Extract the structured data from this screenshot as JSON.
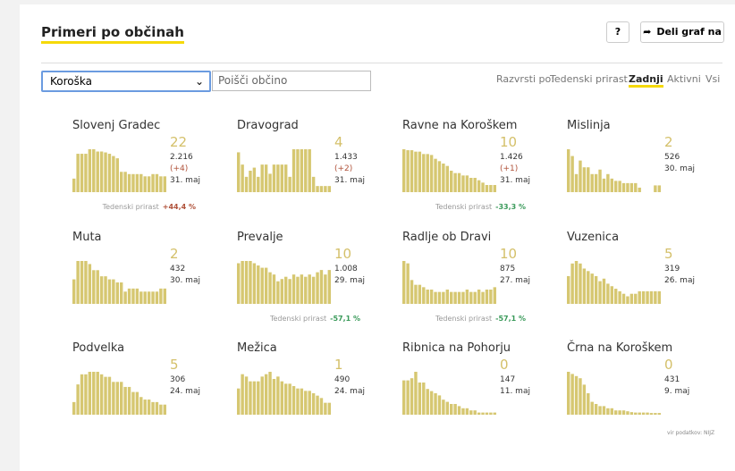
{
  "header": {
    "title": "Primeri po občinah",
    "help": "?",
    "share": "Deli graf na"
  },
  "controls": {
    "select": "Koroška",
    "search": "Poišči občino",
    "sort_label": "Razvrsti po:",
    "sort_options": [
      "Tedenski prirast",
      "Zadnji",
      "Aktivni",
      "Vsi"
    ],
    "active": 1
  },
  "tiles": [
    {
      "name": "Slovenj Gradec",
      "big": 22,
      "total": "2.216",
      "change": "(+4)",
      "date": "31. maj",
      "weekly": {
        "label": "Tedenski prirast",
        "value": "+44,4 %"
      },
      "values": [
        30,
        85,
        85,
        85,
        95,
        95,
        90,
        90,
        88,
        85,
        80,
        75,
        45,
        45,
        40,
        40,
        40,
        40,
        35,
        35,
        40,
        40,
        35,
        35
      ]
    },
    {
      "name": "Dravograd",
      "big": 4,
      "total": "1.433",
      "change": "(+2)",
      "date": "31. maj",
      "values": [
        65,
        45,
        25,
        35,
        40,
        25,
        45,
        45,
        30,
        45,
        45,
        45,
        45,
        25,
        70,
        70,
        70,
        70,
        70,
        25,
        10,
        10,
        10,
        10
      ]
    },
    {
      "name": "Ravne na Koroškem",
      "big": 10,
      "total": "1.426",
      "change": "(+1)",
      "date": "31. maj",
      "weekly": {
        "label": "Tedenski prirast",
        "value": "-33,3 %"
      },
      "values": [
        90,
        88,
        88,
        85,
        85,
        80,
        80,
        78,
        70,
        65,
        60,
        55,
        45,
        40,
        40,
        35,
        35,
        30,
        30,
        25,
        20,
        15,
        15,
        15
      ]
    },
    {
      "name": "Mislinja",
      "big": 2,
      "total": "526",
      "date": "30. maj",
      "values": [
        95,
        80,
        40,
        70,
        55,
        55,
        40,
        40,
        50,
        30,
        40,
        30,
        25,
        25,
        20,
        20,
        20,
        20,
        10,
        0,
        0,
        0,
        15,
        15
      ]
    },
    {
      "name": "Muta",
      "big": 2,
      "total": "432",
      "date": "30. maj",
      "values": [
        40,
        70,
        70,
        70,
        65,
        55,
        55,
        45,
        45,
        40,
        40,
        35,
        35,
        20,
        25,
        25,
        25,
        20,
        20,
        20,
        20,
        20,
        25,
        25
      ]
    },
    {
      "name": "Prevalje",
      "big": 10,
      "total": "1.008",
      "date": "29. maj",
      "weekly": {
        "label": "Tedenski prirast",
        "value": "-57,1 %"
      },
      "values": [
        90,
        95,
        95,
        95,
        90,
        85,
        80,
        80,
        70,
        65,
        50,
        55,
        60,
        55,
        65,
        60,
        65,
        60,
        65,
        60,
        70,
        75,
        65,
        75
      ]
    },
    {
      "name": "Radlje ob Dravi",
      "big": 10,
      "total": "875",
      "date": "27. maj",
      "weekly": {
        "label": "Tedenski prirast",
        "value": "-57,1 %"
      },
      "values": [
        90,
        85,
        50,
        40,
        40,
        35,
        30,
        30,
        25,
        25,
        25,
        30,
        25,
        25,
        25,
        25,
        30,
        25,
        25,
        30,
        25,
        30,
        30,
        35
      ]
    },
    {
      "name": "Vuzenica",
      "big": 5,
      "total": "319",
      "date": "26. maj",
      "values": [
        55,
        80,
        85,
        80,
        70,
        65,
        60,
        55,
        45,
        50,
        40,
        35,
        30,
        25,
        20,
        15,
        20,
        20,
        25,
        25,
        25,
        25,
        25,
        25
      ]
    },
    {
      "name": "Podvelka",
      "big": 5,
      "total": "306",
      "date": "24. maj",
      "values": [
        25,
        60,
        80,
        80,
        85,
        85,
        85,
        80,
        75,
        75,
        65,
        65,
        65,
        55,
        55,
        45,
        45,
        35,
        30,
        30,
        25,
        25,
        20,
        20
      ]
    },
    {
      "name": "Mežica",
      "big": 1,
      "total": "490",
      "date": "24. maj",
      "values": [
        55,
        85,
        80,
        70,
        70,
        70,
        80,
        85,
        90,
        75,
        80,
        70,
        65,
        65,
        60,
        55,
        55,
        50,
        50,
        45,
        40,
        35,
        25,
        25
      ]
    },
    {
      "name": "Ribnica na Pohorju",
      "big": 0,
      "total": "147",
      "date": "11. maj",
      "values": [
        80,
        80,
        85,
        100,
        75,
        75,
        60,
        55,
        50,
        45,
        35,
        30,
        25,
        25,
        20,
        15,
        15,
        10,
        10,
        5,
        5,
        5,
        5,
        5
      ]
    },
    {
      "name": "Črna na Koroškem",
      "big": 0,
      "total": "431",
      "date": "9. maj",
      "values": [
        100,
        95,
        90,
        85,
        70,
        50,
        30,
        25,
        20,
        20,
        15,
        15,
        10,
        10,
        10,
        8,
        6,
        5,
        5,
        5,
        5,
        4,
        4,
        4
      ]
    }
  ],
  "footer": "vir podatkov: NIJZ"
}
